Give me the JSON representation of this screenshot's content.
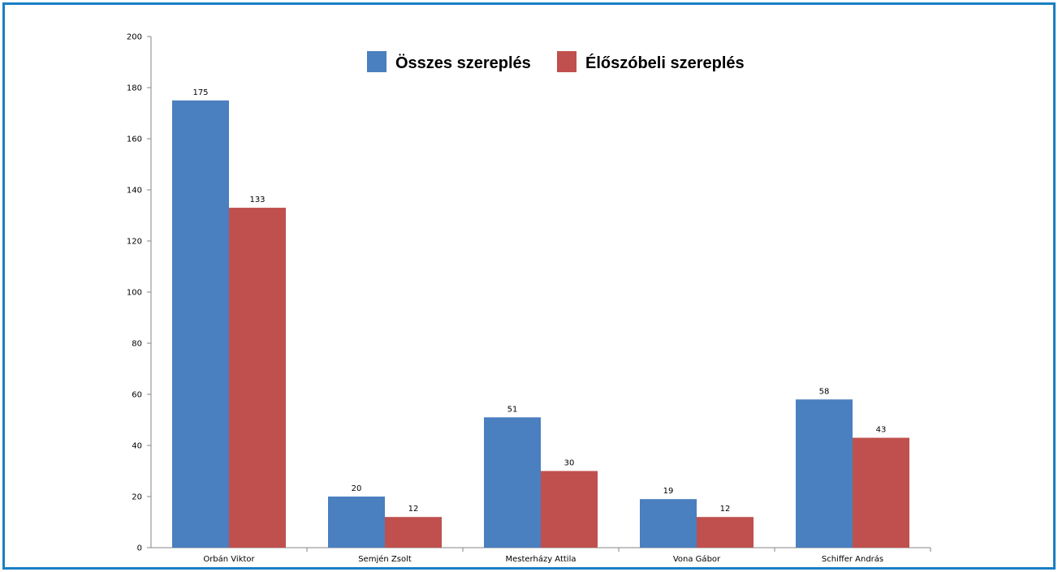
{
  "chart_data": {
    "type": "bar",
    "categories": [
      "Orbán Viktor",
      "Semjén Zsolt",
      "Mesterházy Attila",
      "Vona Gábor",
      "Schiffer András"
    ],
    "series": [
      {
        "name": "Összes szereplés",
        "values": [
          175,
          20,
          51,
          19,
          58
        ],
        "color": "#4a7fc0"
      },
      {
        "name": "Élőszóbeli szereplés",
        "values": [
          133,
          12,
          30,
          12,
          43
        ],
        "color": "#c0504d"
      }
    ],
    "y_ticks": [
      0,
      20,
      40,
      60,
      80,
      100,
      120,
      140,
      160,
      180,
      200
    ],
    "ylim": [
      0,
      200
    ],
    "grid": false,
    "legend": "top-center",
    "data_labels": true,
    "frame_color": "#1a7fc4"
  }
}
